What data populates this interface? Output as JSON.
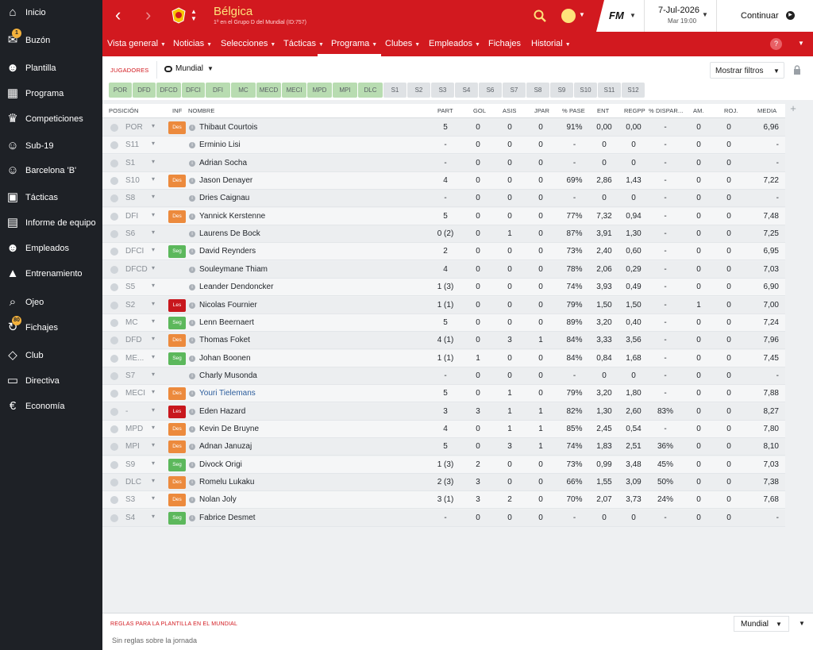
{
  "sidebar": {
    "items": [
      {
        "label": "Inicio",
        "icon": "home-icon"
      },
      {
        "label": "Buzón",
        "icon": "inbox-icon",
        "badge": "1"
      },
      {
        "label": "Plantilla",
        "icon": "squad-icon"
      },
      {
        "label": "Programa",
        "icon": "calendar-icon"
      },
      {
        "label": "Competiciones",
        "icon": "trophy-icon"
      },
      {
        "label": "Sub-19",
        "icon": "youth-icon"
      },
      {
        "label": "Barcelona 'B'",
        "icon": "reserve-team-icon"
      },
      {
        "label": "Tácticas",
        "icon": "tactics-icon"
      },
      {
        "label": "Informe de equipo",
        "icon": "report-icon"
      },
      {
        "label": "Empleados",
        "icon": "staff-icon"
      },
      {
        "label": "Entrenamiento",
        "icon": "training-icon"
      },
      {
        "label": "Ojeo",
        "icon": "scouting-icon"
      },
      {
        "label": "Fichajes",
        "icon": "transfers-icon",
        "badge": "80"
      },
      {
        "label": "Club",
        "icon": "club-icon"
      },
      {
        "label": "Directiva",
        "icon": "board-icon"
      },
      {
        "label": "Economía",
        "icon": "finances-icon"
      }
    ]
  },
  "header": {
    "team_name": "Bélgica",
    "team_subtitle": "1º en el Grupo D del Mundial (ID:757)",
    "date": "7-Jul-2026",
    "day_time": "Mar 19:00",
    "continue_label": "Continuar",
    "logo_text": "FM"
  },
  "nav": {
    "items": [
      {
        "label": "Vista general",
        "chev": true
      },
      {
        "label": "Noticias",
        "chev": true
      },
      {
        "label": "Selecciones",
        "chev": true
      },
      {
        "label": "Tácticas",
        "chev": true
      },
      {
        "label": "Programa",
        "chev": true
      },
      {
        "label": "Clubes",
        "chev": true
      },
      {
        "label": "Empleados",
        "chev": true
      },
      {
        "label": "Fichajes",
        "chev": false
      },
      {
        "label": "Historial",
        "chev": true
      }
    ]
  },
  "filter": {
    "section_label": "JUGADORES",
    "view_label": "Mundial",
    "show_filters": "Mostrar filtros"
  },
  "positions": [
    "POR",
    "DFD",
    "DFCD",
    "DFCI",
    "DFI",
    "MC",
    "MECD",
    "MECI",
    "MPD",
    "MPI",
    "DLC",
    "S1",
    "S2",
    "S3",
    "S4",
    "S6",
    "S7",
    "S8",
    "S9",
    "S10",
    "S11",
    "S12"
  ],
  "positions_active_count": 11,
  "table": {
    "headers": {
      "position": "POSICIÓN",
      "inf": "INF",
      "name": "NOMBRE",
      "part": "PART",
      "gol": "GOL",
      "asis": "ASIS",
      "jpar": "JPAR",
      "pase": "% PASE",
      "ent": "ENT",
      "regpp": "REGPP",
      "dispar": "% DISPAR...",
      "am": "AM.",
      "roj": "ROJ.",
      "media": "MEDIA"
    },
    "rows": [
      {
        "pos": "POR",
        "badge": "Des",
        "name": "Thibaut Courtois",
        "part": "5",
        "gol": "0",
        "asis": "0",
        "jpar": "0",
        "pase": "91%",
        "ent": "0,00",
        "regpp": "0,00",
        "dispar": "-",
        "am": "0",
        "roj": "0",
        "media": "6,96"
      },
      {
        "pos": "S11",
        "badge": "",
        "name": "Erminio Lisi",
        "part": "-",
        "gol": "0",
        "asis": "0",
        "jpar": "0",
        "pase": "-",
        "ent": "0",
        "regpp": "0",
        "dispar": "-",
        "am": "0",
        "roj": "0",
        "media": "-"
      },
      {
        "pos": "S1",
        "badge": "",
        "name": "Adrian Socha",
        "part": "-",
        "gol": "0",
        "asis": "0",
        "jpar": "0",
        "pase": "-",
        "ent": "0",
        "regpp": "0",
        "dispar": "-",
        "am": "0",
        "roj": "0",
        "media": "-"
      },
      {
        "pos": "S10",
        "badge": "Des",
        "name": "Jason Denayer",
        "part": "4",
        "gol": "0",
        "asis": "0",
        "jpar": "0",
        "pase": "69%",
        "ent": "2,86",
        "regpp": "1,43",
        "dispar": "-",
        "am": "0",
        "roj": "0",
        "media": "7,22"
      },
      {
        "pos": "S8",
        "badge": "",
        "name": "Dries Caignau",
        "part": "-",
        "gol": "0",
        "asis": "0",
        "jpar": "0",
        "pase": "-",
        "ent": "0",
        "regpp": "0",
        "dispar": "-",
        "am": "0",
        "roj": "0",
        "media": "-"
      },
      {
        "pos": "DFI",
        "badge": "Des",
        "name": "Yannick Kerstenne",
        "part": "5",
        "gol": "0",
        "asis": "0",
        "jpar": "0",
        "pase": "77%",
        "ent": "7,32",
        "regpp": "0,94",
        "dispar": "-",
        "am": "0",
        "roj": "0",
        "media": "7,48"
      },
      {
        "pos": "S6",
        "badge": "",
        "name": "Laurens De Bock",
        "part": "0 (2)",
        "gol": "0",
        "asis": "1",
        "jpar": "0",
        "pase": "87%",
        "ent": "3,91",
        "regpp": "1,30",
        "dispar": "-",
        "am": "0",
        "roj": "0",
        "media": "7,25"
      },
      {
        "pos": "DFCI",
        "badge": "Seg",
        "name": "David Reynders",
        "part": "2",
        "gol": "0",
        "asis": "0",
        "jpar": "0",
        "pase": "73%",
        "ent": "2,40",
        "regpp": "0,60",
        "dispar": "-",
        "am": "0",
        "roj": "0",
        "media": "6,95"
      },
      {
        "pos": "DFCD",
        "badge": "",
        "name": "Souleymane Thiam",
        "part": "4",
        "gol": "0",
        "asis": "0",
        "jpar": "0",
        "pase": "78%",
        "ent": "2,06",
        "regpp": "0,29",
        "dispar": "-",
        "am": "0",
        "roj": "0",
        "media": "7,03"
      },
      {
        "pos": "S5",
        "badge": "",
        "name": "Leander Dendoncker",
        "part": "1 (3)",
        "gol": "0",
        "asis": "0",
        "jpar": "0",
        "pase": "74%",
        "ent": "3,93",
        "regpp": "0,49",
        "dispar": "-",
        "am": "0",
        "roj": "0",
        "media": "6,90"
      },
      {
        "pos": "S2",
        "badge": "Les",
        "name": "Nicolas Fournier",
        "part": "1 (1)",
        "gol": "0",
        "asis": "0",
        "jpar": "0",
        "pase": "79%",
        "ent": "1,50",
        "regpp": "1,50",
        "dispar": "-",
        "am": "1",
        "roj": "0",
        "media": "7,00"
      },
      {
        "pos": "MC",
        "badge": "Seg",
        "name": "Lenn Beernaert",
        "part": "5",
        "gol": "0",
        "asis": "0",
        "jpar": "0",
        "pase": "89%",
        "ent": "3,20",
        "regpp": "0,40",
        "dispar": "-",
        "am": "0",
        "roj": "0",
        "media": "7,24"
      },
      {
        "pos": "DFD",
        "badge": "Des",
        "name": "Thomas Foket",
        "part": "4 (1)",
        "gol": "0",
        "asis": "3",
        "jpar": "1",
        "pase": "84%",
        "ent": "3,33",
        "regpp": "3,56",
        "dispar": "-",
        "am": "0",
        "roj": "0",
        "media": "7,96"
      },
      {
        "pos": "ME...",
        "badge": "Seg",
        "name": "Johan Boonen",
        "part": "1 (1)",
        "gol": "1",
        "asis": "0",
        "jpar": "0",
        "pase": "84%",
        "ent": "0,84",
        "regpp": "1,68",
        "dispar": "-",
        "am": "0",
        "roj": "0",
        "media": "7,45"
      },
      {
        "pos": "S7",
        "badge": "",
        "name": "Charly Musonda",
        "part": "-",
        "gol": "0",
        "asis": "0",
        "jpar": "0",
        "pase": "-",
        "ent": "0",
        "regpp": "0",
        "dispar": "-",
        "am": "0",
        "roj": "0",
        "media": "-"
      },
      {
        "pos": "MECI",
        "badge": "Des",
        "name": "Youri Tielemans",
        "part": "5",
        "gol": "0",
        "asis": "1",
        "jpar": "0",
        "pase": "79%",
        "ent": "3,20",
        "regpp": "1,80",
        "dispar": "-",
        "am": "0",
        "roj": "0",
        "media": "7,88",
        "link": true
      },
      {
        "pos": "-",
        "badge": "Les",
        "name": "Eden Hazard",
        "part": "3",
        "gol": "3",
        "asis": "1",
        "jpar": "1",
        "pase": "82%",
        "ent": "1,30",
        "regpp": "2,60",
        "dispar": "83%",
        "am": "0",
        "roj": "0",
        "media": "8,27"
      },
      {
        "pos": "MPD",
        "badge": "Des",
        "name": "Kevin De Bruyne",
        "part": "4",
        "gol": "0",
        "asis": "1",
        "jpar": "1",
        "pase": "85%",
        "ent": "2,45",
        "regpp": "0,54",
        "dispar": "-",
        "am": "0",
        "roj": "0",
        "media": "7,80"
      },
      {
        "pos": "MPI",
        "badge": "Des",
        "name": "Adnan Januzaj",
        "part": "5",
        "gol": "0",
        "asis": "3",
        "jpar": "1",
        "pase": "74%",
        "ent": "1,83",
        "regpp": "2,51",
        "dispar": "36%",
        "am": "0",
        "roj": "0",
        "media": "8,10"
      },
      {
        "pos": "S9",
        "badge": "Seg",
        "name": "Divock Origi",
        "part": "1 (3)",
        "gol": "2",
        "asis": "0",
        "jpar": "0",
        "pase": "73%",
        "ent": "0,99",
        "regpp": "3,48",
        "dispar": "45%",
        "am": "0",
        "roj": "0",
        "media": "7,03"
      },
      {
        "pos": "DLC",
        "badge": "Des",
        "name": "Romelu Lukaku",
        "part": "2 (3)",
        "gol": "3",
        "asis": "0",
        "jpar": "0",
        "pase": "66%",
        "ent": "1,55",
        "regpp": "3,09",
        "dispar": "50%",
        "am": "0",
        "roj": "0",
        "media": "7,38"
      },
      {
        "pos": "S3",
        "badge": "Des",
        "name": "Nolan Joly",
        "part": "3 (1)",
        "gol": "3",
        "asis": "2",
        "jpar": "0",
        "pase": "70%",
        "ent": "2,07",
        "regpp": "3,73",
        "dispar": "24%",
        "am": "0",
        "roj": "0",
        "media": "7,68"
      },
      {
        "pos": "S4",
        "badge": "Seg",
        "name": "Fabrice Desmet",
        "part": "-",
        "gol": "0",
        "asis": "0",
        "jpar": "0",
        "pase": "-",
        "ent": "0",
        "regpp": "0",
        "dispar": "-",
        "am": "0",
        "roj": "0",
        "media": "-"
      }
    ]
  },
  "bottom": {
    "title": "REGLAS PARA LA PLANTILLA EN EL MUNDIAL",
    "subtitle": "Sin reglas sobre la jornada",
    "dropdown": "Mundial"
  },
  "colors": {
    "accent_red": "#d2191f",
    "sidebar_bg": "#1e2126",
    "badge_des": "#ec8a3d",
    "badge_seg": "#5cb85c",
    "badge_les": "#c8171d",
    "pos_active": "#b8dcb1",
    "pos_inactive": "#dfe2e5"
  }
}
